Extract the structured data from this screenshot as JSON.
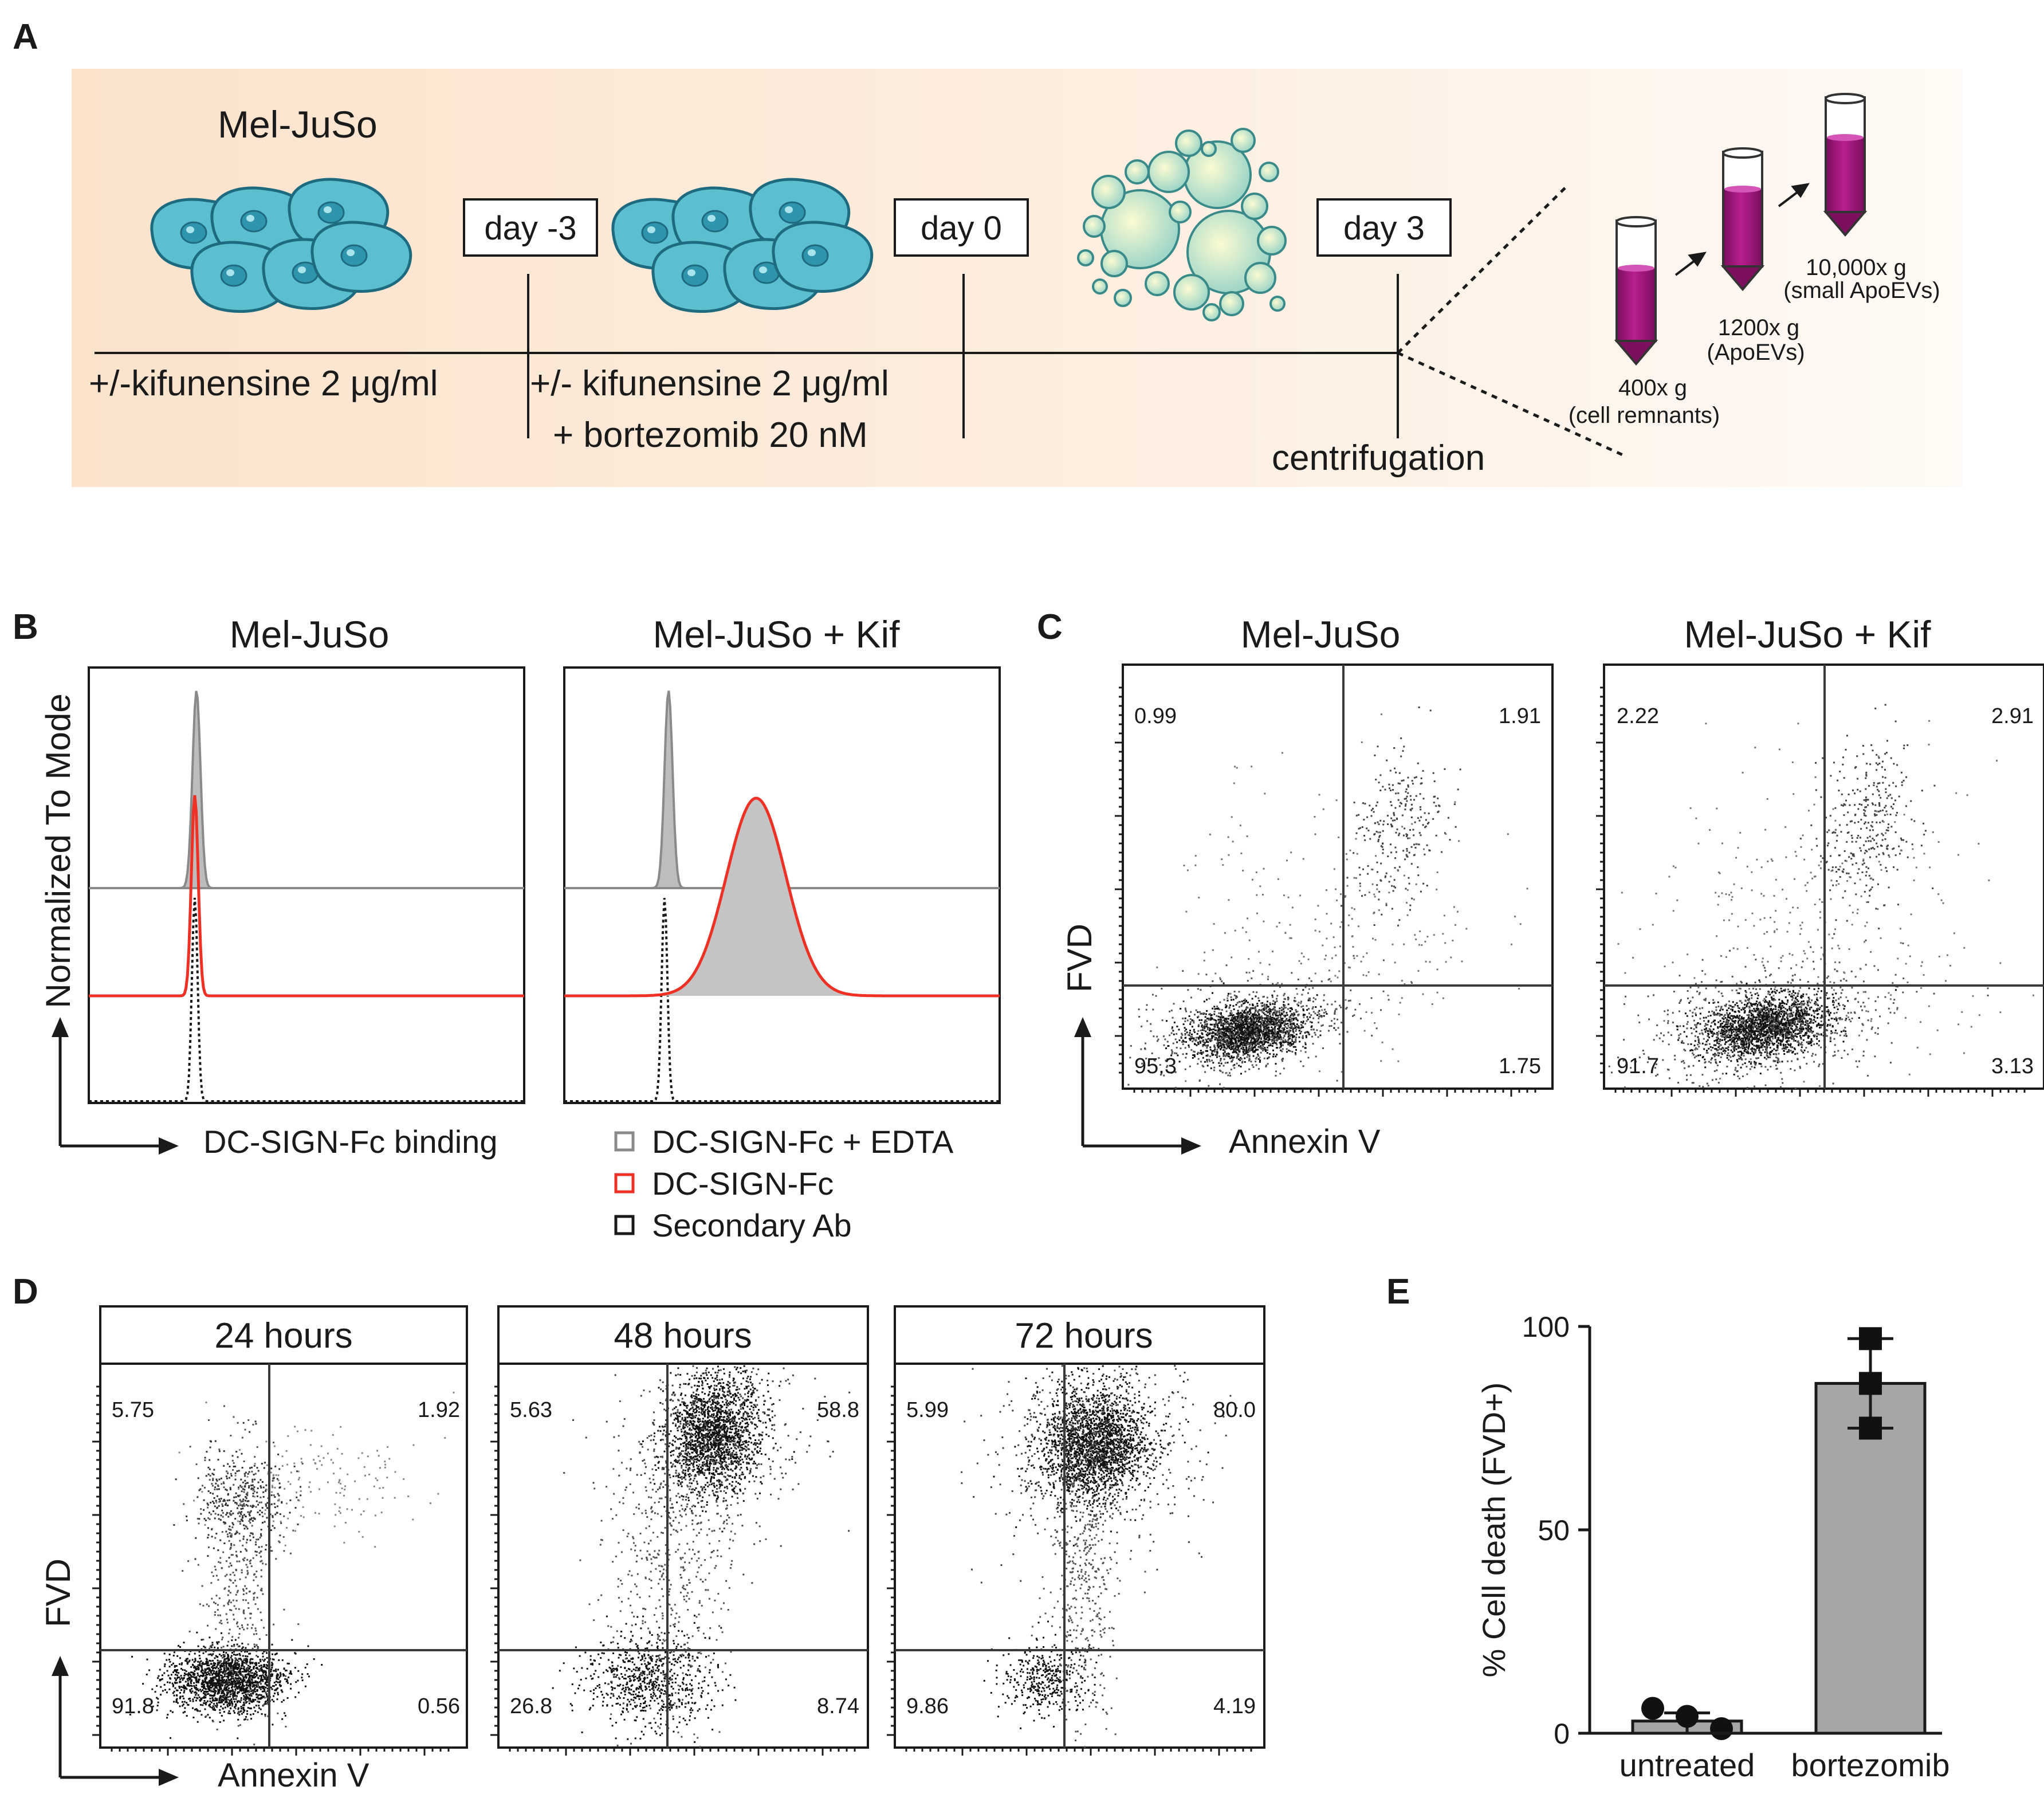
{
  "panel_letters": {
    "a": "A",
    "b": "B",
    "c": "C",
    "d": "D",
    "e": "E"
  },
  "panel_a": {
    "cell_line": "Mel-JuSo",
    "days": [
      "day -3",
      "day 0",
      "day 3"
    ],
    "treatment_1": "+/-kifunensine 2 μg/ml",
    "treatment_2_line1": "+/- kifunensine 2 μg/ml",
    "treatment_2_line2": "+ bortezomib 20 nM",
    "centrifugation": "centrifugation",
    "tubes": [
      {
        "speed": "400x g",
        "fraction": "(cell remnants)"
      },
      {
        "speed": "1200x g",
        "fraction": "(ApoEVs)"
      },
      {
        "speed": "10,000x g",
        "fraction": "(small ApoEVs)"
      }
    ],
    "colors": {
      "background": "#fbe3cc",
      "cell": "#5bbfcf",
      "tube": "#a3157e"
    }
  },
  "panel_b": {
    "titles": [
      "Mel-JuSo",
      "Mel-JuSo + Kif"
    ],
    "y_axis": "Normalized To Mode",
    "x_axis": "DC-SIGN-Fc binding",
    "legend": [
      "DC-SIGN-Fc + EDTA",
      "DC-SIGN-Fc",
      "Secondary Ab"
    ],
    "legend_colors": [
      "#8a8a8a",
      "#ee3124",
      "#1a1a1a"
    ]
  },
  "panel_c": {
    "titles": [
      "Mel-JuSo",
      "Mel-JuSo + Kif"
    ],
    "y_axis": "FVD",
    "x_axis": "Annexin V",
    "quadrants": [
      {
        "ul": "0.99",
        "ur": "1.91",
        "ll": "95.3",
        "lr": "1.75"
      },
      {
        "ul": "2.22",
        "ur": "2.91",
        "ll": "91.7",
        "lr": "3.13"
      }
    ]
  },
  "panel_d": {
    "titles": [
      "24 hours",
      "48 hours",
      "72 hours"
    ],
    "y_axis": "FVD",
    "x_axis": "Annexin V",
    "quadrants": [
      {
        "ul": "5.75",
        "ur": "1.92",
        "ll": "91.8",
        "lr": "0.56"
      },
      {
        "ul": "5.63",
        "ur": "58.8",
        "ll": "26.8",
        "lr": "8.74"
      },
      {
        "ul": "5.99",
        "ur": "80.0",
        "ll": "9.86",
        "lr": "4.19"
      }
    ]
  },
  "chart_data": {
    "type": "bar",
    "title": "",
    "categories": [
      "untreated",
      "bortezomib"
    ],
    "values": [
      3,
      86
    ],
    "points": [
      [
        5,
        5,
        0
      ],
      [
        97,
        86,
        75
      ]
    ],
    "error": [
      [
        0,
        5
      ],
      [
        75,
        97
      ]
    ],
    "ylabel": "% Cell death (FVD+)",
    "ylim": [
      0,
      100
    ],
    "yticks": [
      "0",
      "50",
      "100"
    ],
    "bar_color": "#a6a6a6"
  }
}
